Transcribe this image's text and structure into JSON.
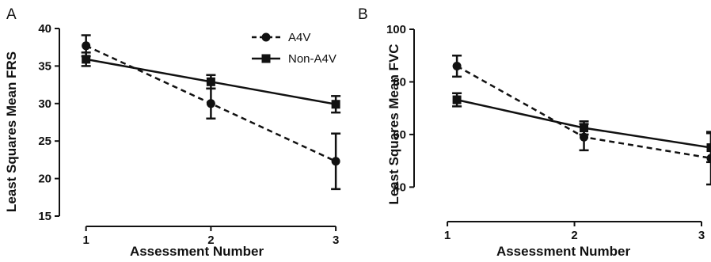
{
  "chart_data": [
    {
      "panel": "A",
      "type": "line",
      "xlabel": "Assessment Number",
      "ylabel": "Least Squares Mean FRS",
      "x": [
        1,
        2,
        3
      ],
      "x_ticks": [
        "1",
        "2",
        "3"
      ],
      "xlim": [
        0.85,
        3.05
      ],
      "ylim": [
        15,
        40
      ],
      "y_ticks": [
        "15",
        "20",
        "25",
        "30",
        "35",
        "40"
      ],
      "legend": "top-right",
      "series": [
        {
          "name": "A4V",
          "marker": "circle",
          "line": "dashed",
          "values": [
            37.7,
            30.0,
            22.3
          ],
          "errors": [
            1.4,
            2.0,
            3.7
          ]
        },
        {
          "name": "Non-A4V",
          "marker": "square",
          "line": "solid",
          "values": [
            35.9,
            32.9,
            29.9
          ],
          "errors": [
            0.9,
            0.9,
            1.1
          ]
        }
      ]
    },
    {
      "panel": "B",
      "type": "line",
      "xlabel": "Assessment Number",
      "ylabel": "Least Squares Mean FVC",
      "x": [
        1,
        2,
        3
      ],
      "x_ticks": [
        "1",
        "2",
        "3"
      ],
      "xlim": [
        0.8,
        3.0
      ],
      "ylim": [
        35,
        100
      ],
      "y_ticks": [
        "40",
        "60",
        "80",
        "100"
      ],
      "series": [
        {
          "name": "A4V",
          "marker": "circle",
          "line": "dashed",
          "values": [
            86.0,
            59.0,
            51.0
          ],
          "errors": [
            4.0,
            5.0,
            10.0
          ]
        },
        {
          "name": "Non-A4V",
          "marker": "square",
          "line": "solid",
          "values": [
            73.2,
            62.5,
            55.0
          ],
          "errors": [
            2.5,
            2.5,
            5.5
          ]
        }
      ]
    }
  ]
}
